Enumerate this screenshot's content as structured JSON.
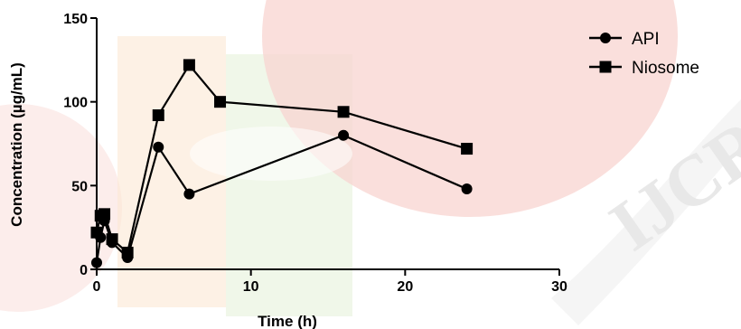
{
  "chart_data": {
    "type": "line",
    "xlabel": "Time (h)",
    "ylabel": "Concentration (µg/mL)",
    "xlim": [
      0,
      30
    ],
    "ylim": [
      0,
      150
    ],
    "xticks": [
      0,
      10,
      20,
      30
    ],
    "yticks": [
      0,
      50,
      100,
      150
    ],
    "grid": false,
    "legend_position": "top-right",
    "series": [
      {
        "name": "API",
        "marker": "circle",
        "x": [
          0,
          0.25,
          0.5,
          1,
          2,
          4,
          6,
          16,
          24
        ],
        "y": [
          4,
          19,
          29,
          16,
          7,
          73,
          45,
          80,
          48
        ]
      },
      {
        "name": "Niosome",
        "marker": "square",
        "x": [
          0,
          0.25,
          0.5,
          1,
          2,
          4,
          6,
          8,
          16,
          24
        ],
        "y": [
          22,
          32,
          33,
          18,
          10,
          92,
          122,
          100,
          94,
          72
        ]
      }
    ]
  },
  "background": {
    "watermark_colors": [
      "#f7d2cf",
      "#e8f3de",
      "#eef0f6",
      "#fbe4cc"
    ]
  }
}
